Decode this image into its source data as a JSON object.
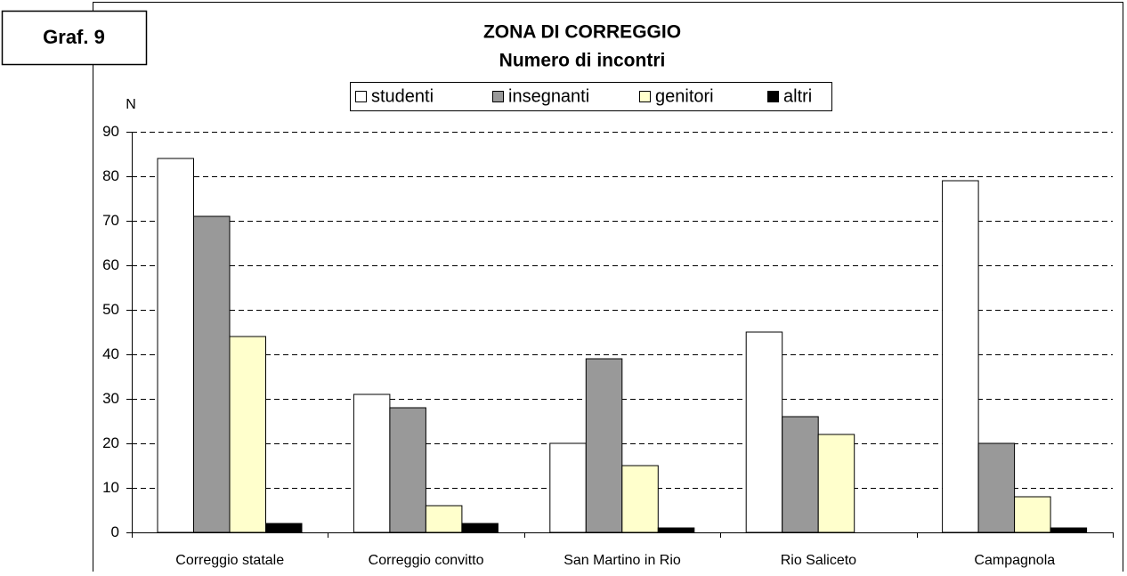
{
  "chart_data": {
    "type": "bar",
    "label": "Graf. 9",
    "title": "ZONA DI CORREGGIO",
    "subtitle": "Numero di incontri",
    "y_label": "N",
    "categories": [
      "Correggio statale",
      "Correggio convitto",
      "San Martino in Rio",
      "Rio Saliceto",
      "Campagnola"
    ],
    "series": [
      {
        "name": "studenti",
        "color": "#ffffff",
        "values": [
          84,
          31,
          20,
          45,
          79
        ]
      },
      {
        "name": "insegnanti",
        "color": "#999999",
        "values": [
          71,
          28,
          39,
          26,
          20
        ]
      },
      {
        "name": "genitori",
        "color": "#ffffcc",
        "values": [
          44,
          6,
          15,
          22,
          8
        ]
      },
      {
        "name": "altri",
        "color": "#000000",
        "values": [
          2,
          2,
          1,
          0,
          1
        ]
      }
    ],
    "ylim": [
      0,
      90
    ],
    "yticks": [
      0,
      10,
      20,
      30,
      40,
      50,
      60,
      70,
      80,
      90
    ],
    "grid": true,
    "legend": "top"
  }
}
